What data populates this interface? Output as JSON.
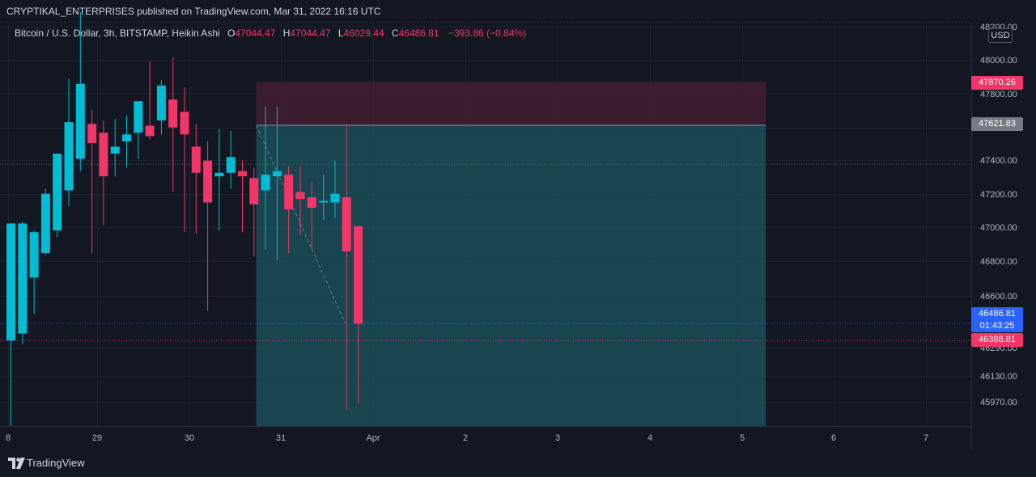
{
  "header": {
    "publish_line": "CRYPTIKAL_ENTERPRISES published on TradingView.com, Mar 31, 2022 16:16 UTC"
  },
  "legend": {
    "symbol": "Bitcoin / U.S. Dollar, 3h, BITSTAMP, Heikin Ashi",
    "o_key": "O",
    "o_val": "47044.47",
    "h_key": "H",
    "h_val": "47044.47",
    "l_key": "L",
    "l_val": "46029.44",
    "c_key": "C",
    "c_val": "46486.81",
    "change": "−393.86 (−0.84%)"
  },
  "currency_badge": "USD",
  "price_labels": {
    "stop": "47870.26",
    "entry": "47621.83",
    "last_price": "46486.81",
    "countdown": "01:43:25",
    "other": "46388.81"
  },
  "footer": {
    "brand": "TradingView"
  },
  "colors": {
    "background": "#131722",
    "up": "#00bcd4",
    "down": "#f23667",
    "last_price_label": "#2962ff",
    "entry_label": "#787b86",
    "profit_zone": "#1b5560",
    "loss_zone": "#4a1f33"
  },
  "chart_data": {
    "type": "candlestick",
    "style": "Heikin Ashi",
    "timeframe": "3h",
    "x_tick_labels": [
      "8",
      "29",
      "30",
      "31",
      "Apr",
      "2",
      "3",
      "4",
      "5",
      "6",
      "7"
    ],
    "y_tick_labels": [
      "48200.00",
      "48000.00",
      "47800.00",
      "47600.00",
      "47400.00",
      "47200.00",
      "47000.00",
      "46800.00",
      "46600.00",
      "46290.00",
      "46130.00",
      "45970.00"
    ],
    "y_range": [
      45900,
      48210
    ],
    "candles": [
      {
        "o": 46390,
        "h": 47060,
        "l": 45900,
        "c": 47060
      },
      {
        "o": 46430,
        "h": 47070,
        "l": 46370,
        "c": 47060
      },
      {
        "o": 46750,
        "h": 47020,
        "l": 46540,
        "c": 47010
      },
      {
        "o": 46890,
        "h": 47260,
        "l": 46880,
        "c": 47230
      },
      {
        "o": 47020,
        "h": 47460,
        "l": 46980,
        "c": 47460
      },
      {
        "o": 47250,
        "h": 47890,
        "l": 47160,
        "c": 47640
      },
      {
        "o": 47430,
        "h": 48270,
        "l": 47360,
        "c": 47860
      },
      {
        "o": 47630,
        "h": 47710,
        "l": 46890,
        "c": 47520
      },
      {
        "o": 47580,
        "h": 47650,
        "l": 47050,
        "c": 47330
      },
      {
        "o": 47460,
        "h": 47660,
        "l": 47330,
        "c": 47500
      },
      {
        "o": 47530,
        "h": 47680,
        "l": 47380,
        "c": 47570
      },
      {
        "o": 47580,
        "h": 47760,
        "l": 47430,
        "c": 47760
      },
      {
        "o": 47620,
        "h": 47990,
        "l": 47540,
        "c": 47560
      },
      {
        "o": 47650,
        "h": 47880,
        "l": 47570,
        "c": 47850
      },
      {
        "o": 47770,
        "h": 48010,
        "l": 47240,
        "c": 47610
      },
      {
        "o": 47700,
        "h": 47840,
        "l": 47010,
        "c": 47570
      },
      {
        "o": 47500,
        "h": 47630,
        "l": 47000,
        "c": 47350
      },
      {
        "o": 47420,
        "h": 47530,
        "l": 46560,
        "c": 47180
      },
      {
        "o": 47330,
        "h": 47600,
        "l": 47020,
        "c": 47350
      },
      {
        "o": 47350,
        "h": 47590,
        "l": 47260,
        "c": 47440
      },
      {
        "o": 47360,
        "h": 47420,
        "l": 47010,
        "c": 47330
      },
      {
        "o": 47320,
        "h": 47380,
        "l": 46870,
        "c": 47170
      },
      {
        "o": 47250,
        "h": 47730,
        "l": 46910,
        "c": 47340
      },
      {
        "o": 47330,
        "h": 47730,
        "l": 46850,
        "c": 47360
      },
      {
        "o": 47340,
        "h": 47390,
        "l": 46890,
        "c": 47140
      },
      {
        "o": 47240,
        "h": 47390,
        "l": 46990,
        "c": 47200
      },
      {
        "o": 47210,
        "h": 47300,
        "l": 46910,
        "c": 47150
      },
      {
        "o": 47180,
        "h": 47340,
        "l": 47080,
        "c": 47190
      },
      {
        "o": 47180,
        "h": 47420,
        "l": 47090,
        "c": 47230
      },
      {
        "o": 47210,
        "h": 47630,
        "l": 45990,
        "c": 46900
      },
      {
        "o": 47044.47,
        "h": 47044.47,
        "l": 46029.44,
        "c": 46486.81
      }
    ],
    "position": {
      "entry": 47621.83,
      "stop": 47870.26,
      "target": 45900,
      "start_candle": 22,
      "end_label": "5"
    },
    "horizontal_lines": [
      47400,
      46486.81,
      46388.81
    ]
  }
}
